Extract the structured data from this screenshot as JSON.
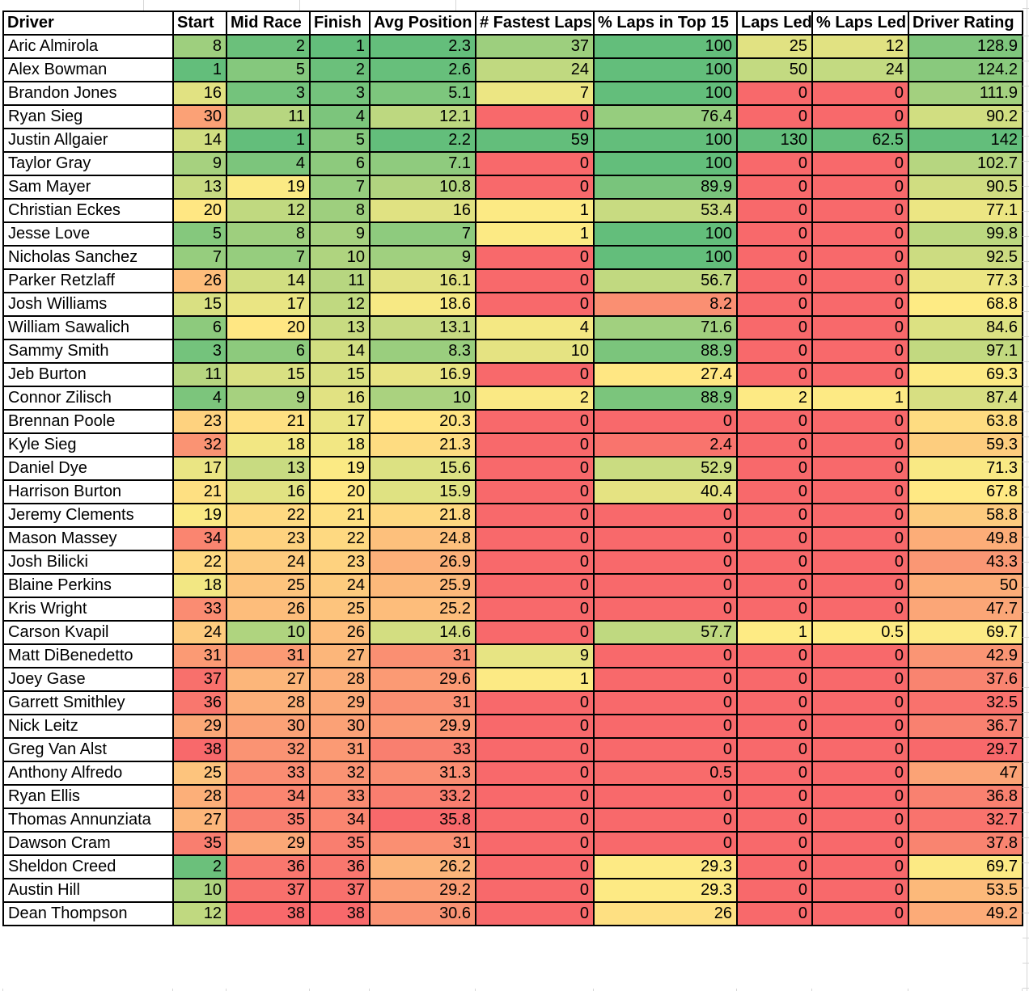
{
  "chart_data": {
    "type": "table",
    "subtype": "heatmap-conditional-formatting",
    "title": "Driver race statistics heatmap table",
    "legend_position": "none",
    "grid": true,
    "color_scale_palette": {
      "red": "#F8696B",
      "yellow": "#FFEB84",
      "green": "#63BE7B"
    },
    "columns": [
      {
        "key": "driver",
        "label": "Driver",
        "type": "text"
      },
      {
        "key": "start",
        "label": "Start",
        "type": "number",
        "scale": {
          "min": 1,
          "mid": 19.5,
          "max": 38,
          "min_color": "#63BE7B",
          "mid_color": "#FFEB84",
          "max_color": "#F8696B"
        }
      },
      {
        "key": "mid-race",
        "label": "Mid Race",
        "type": "number",
        "scale": {
          "min": 1,
          "mid": 19.5,
          "max": 38,
          "min_color": "#63BE7B",
          "mid_color": "#FFEB84",
          "max_color": "#F8696B"
        }
      },
      {
        "key": "finish",
        "label": "Finish",
        "type": "number",
        "scale": {
          "min": 1,
          "mid": 19.5,
          "max": 38,
          "min_color": "#63BE7B",
          "mid_color": "#FFEB84",
          "max_color": "#F8696B"
        }
      },
      {
        "key": "avg-position",
        "label": "Avg Position",
        "type": "number",
        "scale": {
          "min": 2.2,
          "mid": 19.45,
          "max": 35.8,
          "min_color": "#63BE7B",
          "mid_color": "#FFEB84",
          "max_color": "#F8696B"
        }
      },
      {
        "key": "fastest-laps",
        "label": "# Fastest Laps",
        "type": "number",
        "scale": {
          "min": 0,
          "mid": 0,
          "max": 59,
          "min_color": "#F8696B",
          "mid_color": "#FFEB84",
          "max_color": "#63BE7B"
        }
      },
      {
        "key": "pct-laps-top15",
        "label": "% Laps in Top 15",
        "type": "number",
        "scale": {
          "min": 0,
          "mid": 28.35,
          "max": 100,
          "min_color": "#F8696B",
          "mid_color": "#FFEB84",
          "max_color": "#63BE7B"
        }
      },
      {
        "key": "laps-led",
        "label": "Laps Led",
        "type": "number",
        "scale": {
          "min": 0,
          "mid": 0,
          "max": 130,
          "min_color": "#F8696B",
          "mid_color": "#FFEB84",
          "max_color": "#63BE7B"
        }
      },
      {
        "key": "pct-laps-led",
        "label": "% Laps Led",
        "type": "number",
        "scale": {
          "min": 0,
          "mid": 0,
          "max": 62.5,
          "min_color": "#F8696B",
          "mid_color": "#FFEB84",
          "max_color": "#63BE7B"
        }
      },
      {
        "key": "driver-rating",
        "label": "Driver Rating",
        "type": "number",
        "scale": {
          "min": 29.7,
          "mid": 68.3,
          "max": 142,
          "min_color": "#F8696B",
          "mid_color": "#FFEB84",
          "max_color": "#63BE7B"
        }
      }
    ],
    "rows": [
      [
        "Aric Almirola",
        "8",
        "2",
        "1",
        "2.3",
        "37",
        "100",
        "25",
        "12",
        "128.9"
      ],
      [
        "Alex Bowman",
        "1",
        "5",
        "2",
        "2.6",
        "24",
        "100",
        "50",
        "24",
        "124.2"
      ],
      [
        "Brandon Jones",
        "16",
        "3",
        "3",
        "5.1",
        "7",
        "100",
        "0",
        "0",
        "111.9"
      ],
      [
        "Ryan Sieg",
        "30",
        "11",
        "4",
        "12.1",
        "0",
        "76.4",
        "0",
        "0",
        "90.2"
      ],
      [
        "Justin Allgaier",
        "14",
        "1",
        "5",
        "2.2",
        "59",
        "100",
        "130",
        "62.5",
        "142"
      ],
      [
        "Taylor Gray",
        "9",
        "4",
        "6",
        "7.1",
        "0",
        "100",
        "0",
        "0",
        "102.7"
      ],
      [
        "Sam Mayer",
        "13",
        "19",
        "7",
        "10.8",
        "0",
        "89.9",
        "0",
        "0",
        "90.5"
      ],
      [
        "Christian Eckes",
        "20",
        "12",
        "8",
        "16",
        "1",
        "53.4",
        "0",
        "0",
        "77.1"
      ],
      [
        "Jesse Love",
        "5",
        "8",
        "9",
        "7",
        "1",
        "100",
        "0",
        "0",
        "99.8"
      ],
      [
        "Nicholas Sanchez",
        "7",
        "7",
        "10",
        "9",
        "0",
        "100",
        "0",
        "0",
        "92.5"
      ],
      [
        "Parker Retzlaff",
        "26",
        "14",
        "11",
        "16.1",
        "0",
        "56.7",
        "0",
        "0",
        "77.3"
      ],
      [
        "Josh Williams",
        "15",
        "17",
        "12",
        "18.6",
        "0",
        "8.2",
        "0",
        "0",
        "68.8"
      ],
      [
        "William Sawalich",
        "6",
        "20",
        "13",
        "13.1",
        "4",
        "71.6",
        "0",
        "0",
        "84.6"
      ],
      [
        "Sammy Smith",
        "3",
        "6",
        "14",
        "8.3",
        "10",
        "88.9",
        "0",
        "0",
        "97.1"
      ],
      [
        "Jeb Burton",
        "11",
        "15",
        "15",
        "16.9",
        "0",
        "27.4",
        "0",
        "0",
        "69.3"
      ],
      [
        "Connor Zilisch",
        "4",
        "9",
        "16",
        "10",
        "2",
        "88.9",
        "2",
        "1",
        "87.4"
      ],
      [
        "Brennan Poole",
        "23",
        "21",
        "17",
        "20.3",
        "0",
        "0",
        "0",
        "0",
        "63.8"
      ],
      [
        "Kyle Sieg",
        "32",
        "18",
        "18",
        "21.3",
        "0",
        "2.4",
        "0",
        "0",
        "59.3"
      ],
      [
        "Daniel Dye",
        "17",
        "13",
        "19",
        "15.6",
        "0",
        "52.9",
        "0",
        "0",
        "71.3"
      ],
      [
        "Harrison Burton",
        "21",
        "16",
        "20",
        "15.9",
        "0",
        "40.4",
        "0",
        "0",
        "67.8"
      ],
      [
        "Jeremy Clements",
        "19",
        "22",
        "21",
        "21.8",
        "0",
        "0",
        "0",
        "0",
        "58.8"
      ],
      [
        "Mason Massey",
        "34",
        "23",
        "22",
        "24.8",
        "0",
        "0",
        "0",
        "0",
        "49.8"
      ],
      [
        "Josh Bilicki",
        "22",
        "24",
        "23",
        "26.9",
        "0",
        "0",
        "0",
        "0",
        "43.3"
      ],
      [
        "Blaine Perkins",
        "18",
        "25",
        "24",
        "25.9",
        "0",
        "0",
        "0",
        "0",
        "50"
      ],
      [
        "Kris Wright",
        "33",
        "26",
        "25",
        "25.2",
        "0",
        "0",
        "0",
        "0",
        "47.7"
      ],
      [
        "Carson Kvapil",
        "24",
        "10",
        "26",
        "14.6",
        "0",
        "57.7",
        "1",
        "0.5",
        "69.7"
      ],
      [
        "Matt DiBenedetto",
        "31",
        "31",
        "27",
        "31",
        "9",
        "0",
        "0",
        "0",
        "42.9"
      ],
      [
        "Joey Gase",
        "37",
        "27",
        "28",
        "29.6",
        "1",
        "0",
        "0",
        "0",
        "37.6"
      ],
      [
        "Garrett Smithley",
        "36",
        "28",
        "29",
        "31",
        "0",
        "0",
        "0",
        "0",
        "32.5"
      ],
      [
        "Nick Leitz",
        "29",
        "30",
        "30",
        "29.9",
        "0",
        "0",
        "0",
        "0",
        "36.7"
      ],
      [
        "Greg Van Alst",
        "38",
        "32",
        "31",
        "33",
        "0",
        "0",
        "0",
        "0",
        "29.7"
      ],
      [
        "Anthony Alfredo",
        "25",
        "33",
        "32",
        "31.3",
        "0",
        "0.5",
        "0",
        "0",
        "47"
      ],
      [
        "Ryan Ellis",
        "28",
        "34",
        "33",
        "33.2",
        "0",
        "0",
        "0",
        "0",
        "36.8"
      ],
      [
        "Thomas Annunziata",
        "27",
        "35",
        "34",
        "35.8",
        "0",
        "0",
        "0",
        "0",
        "32.7"
      ],
      [
        "Dawson Cram",
        "35",
        "29",
        "35",
        "31",
        "0",
        "0",
        "0",
        "0",
        "37.8"
      ],
      [
        "Sheldon Creed",
        "2",
        "36",
        "36",
        "26.2",
        "0",
        "29.3",
        "0",
        "0",
        "69.7"
      ],
      [
        "Austin Hill",
        "10",
        "37",
        "37",
        "29.2",
        "0",
        "29.3",
        "0",
        "0",
        "53.5"
      ],
      [
        "Dean Thompson",
        "12",
        "38",
        "38",
        "30.6",
        "0",
        "26",
        "0",
        "0",
        "49.2"
      ]
    ]
  }
}
